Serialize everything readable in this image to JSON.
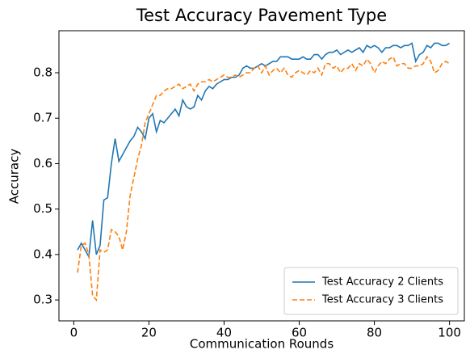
{
  "chart_data": {
    "type": "line",
    "title": "Test Accuracy Pavement Type",
    "xlabel": "Communication Rounds",
    "ylabel": "Accuracy",
    "x": [
      1,
      2,
      3,
      4,
      5,
      6,
      7,
      8,
      9,
      10,
      11,
      12,
      13,
      14,
      15,
      16,
      17,
      18,
      19,
      20,
      21,
      22,
      23,
      24,
      25,
      26,
      27,
      28,
      29,
      30,
      31,
      32,
      33,
      34,
      35,
      36,
      37,
      38,
      39,
      40,
      41,
      42,
      43,
      44,
      45,
      46,
      47,
      48,
      49,
      50,
      51,
      52,
      53,
      54,
      55,
      56,
      57,
      58,
      59,
      60,
      61,
      62,
      63,
      64,
      65,
      66,
      67,
      68,
      69,
      70,
      71,
      72,
      73,
      74,
      75,
      76,
      77,
      78,
      79,
      80,
      81,
      82,
      83,
      84,
      85,
      86,
      87,
      88,
      89,
      90,
      91,
      92,
      93,
      94,
      95,
      96,
      97,
      98,
      99,
      100
    ],
    "series": [
      {
        "name": "Test Accuracy 2 Clients",
        "color": "#1f77b4",
        "dash": "solid",
        "values": [
          0.41,
          0.425,
          0.41,
          0.395,
          0.475,
          0.4,
          0.42,
          0.52,
          0.525,
          0.6,
          0.655,
          0.605,
          0.62,
          0.635,
          0.65,
          0.66,
          0.68,
          0.67,
          0.655,
          0.7,
          0.71,
          0.67,
          0.695,
          0.69,
          0.7,
          0.71,
          0.72,
          0.705,
          0.74,
          0.725,
          0.72,
          0.725,
          0.75,
          0.74,
          0.76,
          0.77,
          0.765,
          0.775,
          0.78,
          0.785,
          0.785,
          0.79,
          0.79,
          0.795,
          0.81,
          0.815,
          0.81,
          0.81,
          0.815,
          0.82,
          0.815,
          0.82,
          0.825,
          0.825,
          0.835,
          0.835,
          0.835,
          0.83,
          0.83,
          0.83,
          0.835,
          0.83,
          0.83,
          0.84,
          0.84,
          0.83,
          0.84,
          0.845,
          0.845,
          0.85,
          0.84,
          0.845,
          0.85,
          0.845,
          0.85,
          0.855,
          0.845,
          0.86,
          0.855,
          0.86,
          0.855,
          0.845,
          0.855,
          0.855,
          0.86,
          0.86,
          0.855,
          0.86,
          0.86,
          0.865,
          0.825,
          0.84,
          0.845,
          0.86,
          0.855,
          0.865,
          0.865,
          0.86,
          0.86,
          0.865
        ]
      },
      {
        "name": "Test Accuracy 3 Clients",
        "color": "#ff7f0e",
        "dash": "dashed",
        "values": [
          0.36,
          0.42,
          0.425,
          0.4,
          0.31,
          0.3,
          0.41,
          0.405,
          0.41,
          0.455,
          0.45,
          0.44,
          0.41,
          0.45,
          0.53,
          0.57,
          0.61,
          0.64,
          0.69,
          0.71,
          0.73,
          0.75,
          0.75,
          0.76,
          0.765,
          0.765,
          0.77,
          0.775,
          0.765,
          0.77,
          0.775,
          0.76,
          0.775,
          0.78,
          0.78,
          0.785,
          0.78,
          0.785,
          0.79,
          0.795,
          0.79,
          0.79,
          0.795,
          0.79,
          0.795,
          0.8,
          0.8,
          0.81,
          0.815,
          0.8,
          0.815,
          0.795,
          0.805,
          0.81,
          0.8,
          0.81,
          0.795,
          0.79,
          0.8,
          0.805,
          0.8,
          0.795,
          0.805,
          0.8,
          0.81,
          0.795,
          0.82,
          0.82,
          0.81,
          0.815,
          0.8,
          0.81,
          0.81,
          0.82,
          0.805,
          0.82,
          0.815,
          0.83,
          0.82,
          0.8,
          0.815,
          0.825,
          0.82,
          0.83,
          0.835,
          0.815,
          0.82,
          0.82,
          0.81,
          0.81,
          0.815,
          0.815,
          0.82,
          0.835,
          0.825,
          0.8,
          0.805,
          0.82,
          0.825,
          0.82
        ]
      }
    ],
    "xlim": [
      -3.95,
      103.95
    ],
    "xticks": [
      0,
      20,
      40,
      60,
      80,
      100
    ],
    "ylim": [
      0.254,
      0.8925
    ],
    "yticks": [
      0.3,
      0.4,
      0.5,
      0.6,
      0.7,
      0.8
    ],
    "grid": false,
    "legend": "lower right"
  }
}
